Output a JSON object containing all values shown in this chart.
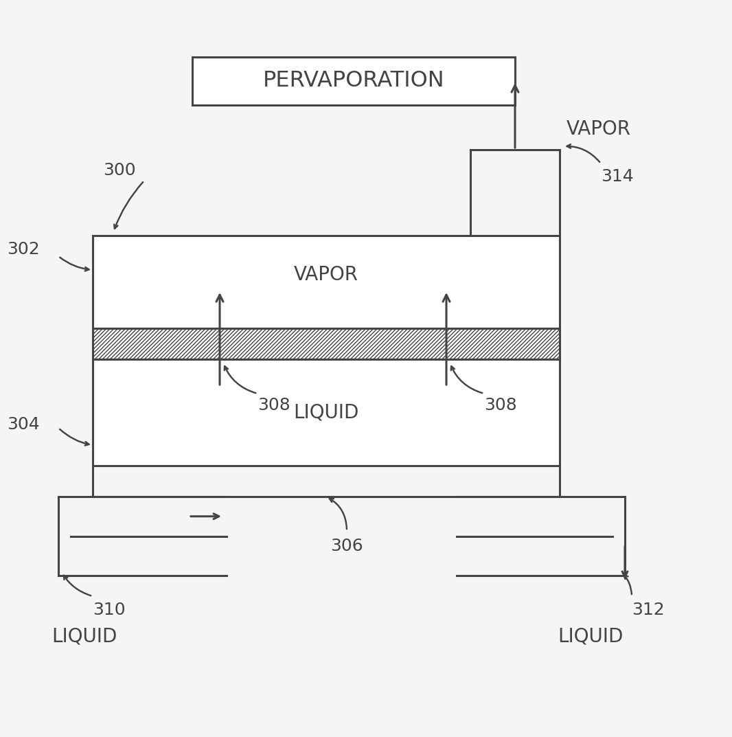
{
  "bg_color": "#f5f5f5",
  "line_color": "#444444",
  "text_color": "#444444",
  "title_text": "PERVAPORATION",
  "label_300": "300",
  "label_302": "302",
  "label_304": "304",
  "label_306": "306",
  "label_308a": "308",
  "label_308b": "308",
  "label_310": "310",
  "label_312": "312",
  "label_314": "314",
  "label_vapor_top": "VAPOR",
  "label_vapor_inside": "VAPOR",
  "label_liquid_inside": "LIQUID",
  "label_liquid_left": "LIQUID",
  "label_liquid_right": "LIQUID",
  "lw": 2.2
}
